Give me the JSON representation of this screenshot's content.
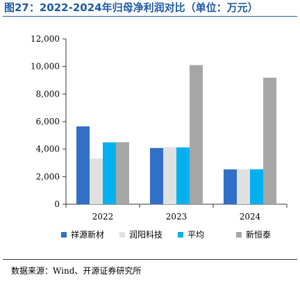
{
  "header": {
    "figure_title": "图27：2022-2024年归母净利润对比（单位：万元）"
  },
  "footer": {
    "source": "数据来源：Wind、开源证券研究所"
  },
  "chart_data": {
    "type": "bar",
    "categories": [
      "2022",
      "2023",
      "2024"
    ],
    "series": [
      {
        "name": "祥源新材",
        "color": "#3070c6",
        "values": [
          5650,
          4080,
          2530
        ]
      },
      {
        "name": "润阳科技",
        "color": "#e0e0e0",
        "values": [
          3320,
          4150,
          2540
        ]
      },
      {
        "name": "平均",
        "color": "#00b0f0",
        "values": [
          4490,
          4120,
          2535
        ]
      },
      {
        "name": "新恒泰",
        "color": "#a6a6a6",
        "values": [
          4500,
          10100,
          9180
        ]
      }
    ],
    "ylim": [
      0,
      12000
    ],
    "yticks": [
      "0",
      "2,000",
      "4,000",
      "6,000",
      "8,000",
      "10,000",
      "12,000"
    ],
    "ytick_values": [
      0,
      2000,
      4000,
      6000,
      8000,
      10000,
      12000
    ],
    "grid": false,
    "legend_position": "bottom"
  }
}
